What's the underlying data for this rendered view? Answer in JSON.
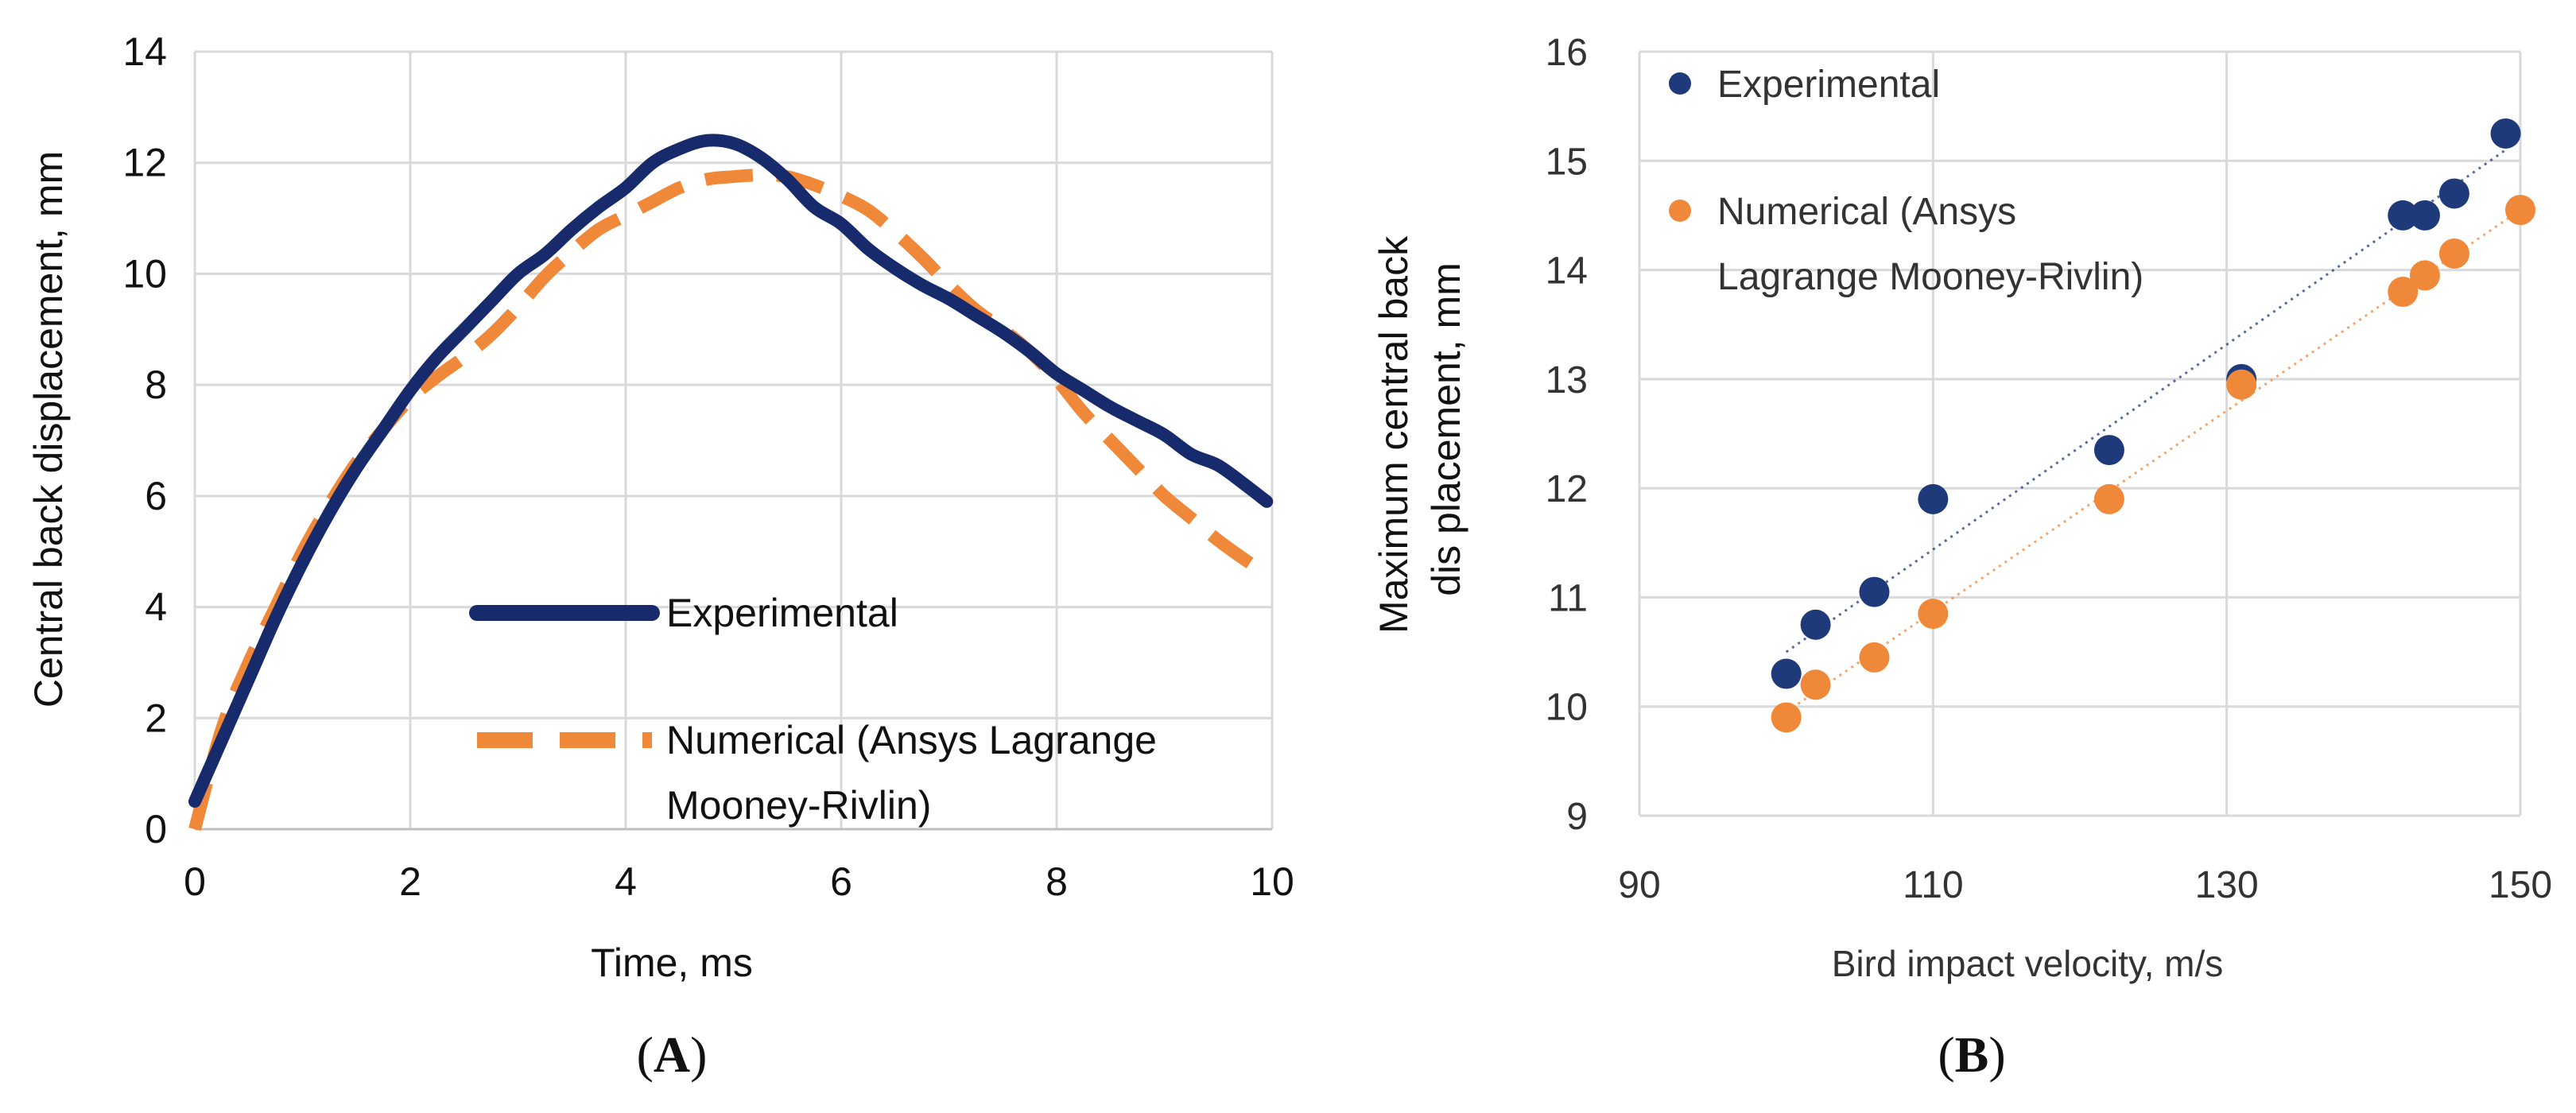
{
  "chart_data": [
    {
      "type": "line",
      "panel_label": "A",
      "title": "",
      "xlabel": "Time, ms",
      "ylabel": "Central back displacement, mm",
      "xlim": [
        0,
        10
      ],
      "ylim": [
        0,
        14
      ],
      "x_ticks": [
        0,
        2,
        4,
        6,
        8,
        10
      ],
      "y_ticks": [
        0,
        2,
        4,
        6,
        8,
        10,
        12,
        14
      ],
      "grid": true,
      "legend_position": "center-right",
      "colors": {
        "experimental": "#172a6b",
        "numerical": "#f0883a"
      },
      "series": [
        {
          "name": "Experimental",
          "line_style": "solid",
          "x": [
            0,
            0.25,
            0.5,
            0.75,
            1.0,
            1.25,
            1.5,
            1.75,
            2.0,
            2.25,
            2.5,
            2.75,
            3.0,
            3.25,
            3.5,
            3.75,
            4.0,
            4.25,
            4.5,
            4.75,
            5.0,
            5.25,
            5.5,
            5.75,
            6.0,
            6.25,
            6.5,
            6.75,
            7.0,
            7.25,
            7.5,
            7.75,
            8.0,
            8.25,
            8.5,
            8.75,
            9.0,
            9.25,
            9.5,
            9.75,
            9.95
          ],
          "y": [
            0.5,
            1.6,
            2.7,
            3.8,
            4.8,
            5.7,
            6.5,
            7.2,
            7.9,
            8.5,
            9.0,
            9.5,
            10.0,
            10.35,
            10.8,
            11.2,
            11.55,
            12.0,
            12.25,
            12.4,
            12.35,
            12.1,
            11.7,
            11.2,
            10.9,
            10.45,
            10.1,
            9.8,
            9.55,
            9.25,
            8.95,
            8.6,
            8.2,
            7.9,
            7.6,
            7.35,
            7.1,
            6.75,
            6.55,
            6.2,
            5.9
          ]
        },
        {
          "name": "Numerical (Ansys Lagrange Mooney-Rivlin)",
          "line_style": "dashed",
          "x": [
            0,
            0.25,
            0.5,
            0.75,
            1.0,
            1.25,
            1.5,
            1.75,
            2.0,
            2.25,
            2.5,
            2.75,
            3.0,
            3.25,
            3.5,
            3.75,
            4.0,
            4.25,
            4.5,
            4.75,
            5.0,
            5.25,
            5.5,
            5.75,
            6.0,
            6.25,
            6.5,
            6.75,
            7.0,
            7.25,
            7.5,
            7.75,
            8.0,
            8.25,
            8.5,
            8.75,
            9.0,
            9.25,
            9.5,
            9.75,
            9.95
          ],
          "y": [
            0,
            1.8,
            3.0,
            4.0,
            5.0,
            5.85,
            6.6,
            7.2,
            7.75,
            8.15,
            8.5,
            8.9,
            9.4,
            9.95,
            10.4,
            10.8,
            11.05,
            11.3,
            11.55,
            11.7,
            11.75,
            11.78,
            11.75,
            11.6,
            11.4,
            11.15,
            10.75,
            10.3,
            9.8,
            9.35,
            9.0,
            8.6,
            8.1,
            7.5,
            7.0,
            6.5,
            6.0,
            5.6,
            5.2,
            4.85,
            4.6
          ]
        }
      ]
    },
    {
      "type": "scatter",
      "panel_label": "B",
      "title": "",
      "xlabel": "Bird impact velocity, m/s",
      "ylabel_line1": "Maximum central back",
      "ylabel_line2": "dis placement, mm",
      "xlim": [
        90,
        150
      ],
      "ylim": [
        9,
        16
      ],
      "x_ticks": [
        90,
        110,
        130,
        150
      ],
      "y_ticks": [
        9,
        10,
        11,
        12,
        13,
        14,
        15,
        16
      ],
      "grid": true,
      "legend_position": "top-left",
      "colors": {
        "experimental": "#1f3a7a",
        "numerical": "#f0883a"
      },
      "series": [
        {
          "name": "Experimental",
          "x": [
            100,
            102,
            106,
            110,
            122,
            131,
            142,
            143.5,
            145.5,
            149
          ],
          "y": [
            10.3,
            10.75,
            11.05,
            11.9,
            12.35,
            13.0,
            14.5,
            14.5,
            14.7,
            15.25
          ],
          "trendline": {
            "x": [
              100,
              149
            ],
            "y": [
              10.5,
              15.1
            ]
          }
        },
        {
          "name_line1": "Numerical (Ansys",
          "name_line2": "Lagrange Mooney-Rivlin)",
          "x": [
            100,
            102,
            106,
            110,
            122,
            131,
            142,
            143.5,
            145.5,
            150
          ],
          "y": [
            9.9,
            10.2,
            10.45,
            10.85,
            11.9,
            12.95,
            13.8,
            13.95,
            14.15,
            14.55
          ],
          "trendline": {
            "x": [
              100,
              150
            ],
            "y": [
              9.95,
              14.55
            ]
          }
        }
      ]
    }
  ]
}
